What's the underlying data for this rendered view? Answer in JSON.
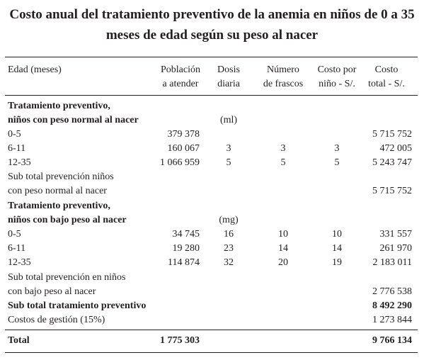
{
  "title": {
    "line1": "Costo anual del tratamiento preventivo de la anemia en niños de 0 a 35",
    "line2": "meses de edad según su peso al nacer"
  },
  "header": {
    "edad": "Edad (meses)",
    "poblacion_1": "Población",
    "poblacion_2": "a atender",
    "dosis_1": "Dosis",
    "dosis_2": "diaria",
    "frascos_1": "Número",
    "frascos_2": "de frascos",
    "costo_nino_1": "Costo por",
    "costo_nino_2": "niño - S/.",
    "costo_total_1": "Costo",
    "costo_total_2": "total - S/."
  },
  "section_normal": {
    "heading_1": "Tratamiento preventivo,",
    "heading_2": "niños con peso normal al nacer",
    "unit": "(ml)",
    "rows": [
      {
        "edad": "0-5",
        "poblacion": "379 378",
        "dosis": "",
        "frascos": "",
        "costo_nino": "",
        "costo_total": "5 715 752"
      },
      {
        "edad": "6-11",
        "poblacion": "160 067",
        "dosis": "3",
        "frascos": "3",
        "costo_nino": "3",
        "costo_total": "472 005"
      },
      {
        "edad": "12-35",
        "poblacion": "1 066 959",
        "dosis": "5",
        "frascos": "5",
        "costo_nino": "5",
        "costo_total": "5 243 747"
      }
    ],
    "subtotal_1": "Sub total prevención niños",
    "subtotal_2": "con peso normal al nacer",
    "subtotal_value": "5 715 752"
  },
  "section_bajo": {
    "heading_1": "Tratamiento preventivo,",
    "heading_2": "niños con bajo peso al nacer",
    "unit": "(mg)",
    "rows": [
      {
        "edad": "0-5",
        "poblacion": "34 745",
        "dosis": "16",
        "frascos": "10",
        "costo_nino": "10",
        "costo_total": "331 557"
      },
      {
        "edad": "6-11",
        "poblacion": "19 280",
        "dosis": "23",
        "frascos": "14",
        "costo_nino": "14",
        "costo_total": "261 970"
      },
      {
        "edad": "12-35",
        "poblacion": "114 874",
        "dosis": "32",
        "frascos": "20",
        "costo_nino": "19",
        "costo_total": "2 183 011"
      }
    ],
    "subtotal_1": "Sub total prevención en niños",
    "subtotal_2": "con bajo peso al nacer",
    "subtotal_value": "2 776 538"
  },
  "subtotal_preventivo": {
    "label": "Sub total tratamiento preventivo",
    "value": "8 492 290"
  },
  "gestion": {
    "label": "Costos de gestión (15%)",
    "value": "1 273 844"
  },
  "total": {
    "label": "Total",
    "poblacion": "1 775 303",
    "value": "9 766 134"
  }
}
